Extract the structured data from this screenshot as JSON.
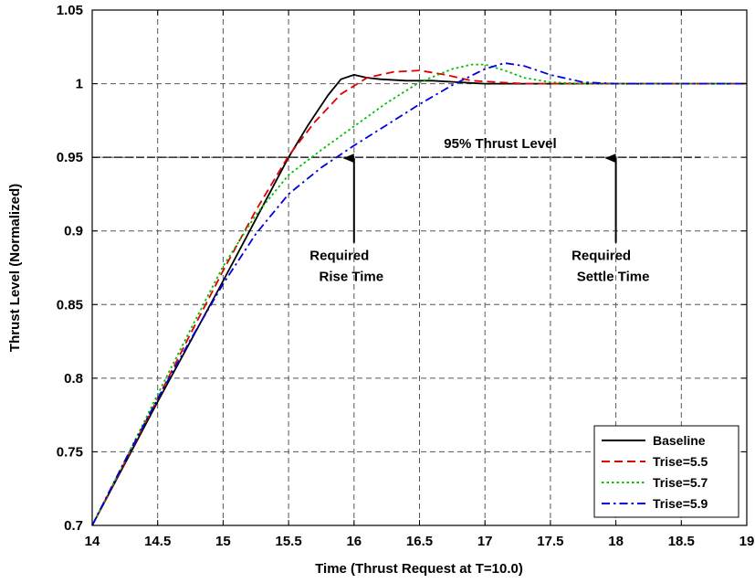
{
  "chart_data": {
    "type": "line",
    "xlabel": "Time (Thrust Request at T=10.0)",
    "ylabel": "Thrust Level (Normalized)",
    "xlim": [
      14,
      19
    ],
    "ylim": [
      0.7,
      1.05
    ],
    "grid": true,
    "legend_position": "bottom-right",
    "x_ticks": [
      14,
      14.5,
      15,
      15.5,
      16,
      16.5,
      17,
      17.5,
      18,
      18.5,
      19
    ],
    "x_tick_labels": [
      "14",
      "14.5",
      "15",
      "15.5",
      "16",
      "16.5",
      "17",
      "17.5",
      "18",
      "18.5",
      "19"
    ],
    "y_ticks": [
      0.7,
      0.75,
      0.8,
      0.85,
      0.9,
      0.95,
      1,
      1.05
    ],
    "y_tick_labels": [
      "0.7",
      "0.75",
      "0.8",
      "0.85",
      "0.9",
      "0.95",
      "1",
      "1.05"
    ],
    "series": [
      {
        "name": "Baseline",
        "color": "#000000",
        "style": "solid",
        "x": [
          14.0,
          14.25,
          14.5,
          14.75,
          15.0,
          15.25,
          15.5,
          15.65,
          15.8,
          15.9,
          16.0,
          16.1,
          16.2,
          16.4,
          16.6,
          16.8,
          17.0,
          17.5,
          18.0,
          18.5,
          19.0
        ],
        "y": [
          0.7,
          0.742,
          0.784,
          0.825,
          0.866,
          0.908,
          0.95,
          0.972,
          0.992,
          1.003,
          1.006,
          1.004,
          1.003,
          1.002,
          1.002,
          1.001,
          1.0,
          1.0,
          1.0,
          1.0,
          1.0
        ]
      },
      {
        "name": "Trise=5.5",
        "color": "#e00000",
        "style": "dashed",
        "x": [
          14.0,
          14.25,
          14.5,
          14.75,
          15.0,
          15.25,
          15.5,
          15.7,
          15.9,
          16.1,
          16.3,
          16.5,
          16.7,
          16.9,
          17.1,
          17.3,
          17.6,
          18.0,
          18.5,
          19.0
        ],
        "y": [
          0.7,
          0.743,
          0.786,
          0.83,
          0.873,
          0.914,
          0.951,
          0.974,
          0.993,
          1.004,
          1.008,
          1.009,
          1.006,
          1.002,
          1.001,
          1.0,
          1.0,
          1.0,
          1.0,
          1.0
        ]
      },
      {
        "name": "Trise=5.7",
        "color": "#00c000",
        "style": "dotted",
        "x": [
          14.0,
          14.25,
          14.5,
          14.75,
          15.0,
          15.25,
          15.5,
          15.75,
          16.0,
          16.25,
          16.5,
          16.75,
          16.9,
          17.0,
          17.15,
          17.3,
          17.5,
          17.75,
          18.0,
          18.5,
          19.0
        ],
        "y": [
          0.7,
          0.744,
          0.789,
          0.833,
          0.876,
          0.911,
          0.938,
          0.955,
          0.971,
          0.987,
          1.001,
          1.01,
          1.013,
          1.013,
          1.009,
          1.004,
          1.001,
          1.0,
          1.0,
          1.0,
          1.0
        ]
      },
      {
        "name": "Trise=5.9",
        "color": "#0000e0",
        "style": "dashdot",
        "x": [
          14.0,
          14.25,
          14.5,
          14.75,
          15.0,
          15.25,
          15.5,
          15.75,
          16.0,
          16.25,
          16.5,
          16.75,
          17.0,
          17.15,
          17.3,
          17.5,
          17.75,
          18.0,
          18.5,
          19.0
        ],
        "y": [
          0.7,
          0.744,
          0.786,
          0.826,
          0.864,
          0.898,
          0.925,
          0.943,
          0.958,
          0.972,
          0.986,
          0.999,
          1.01,
          1.014,
          1.012,
          1.006,
          1.001,
          1.0,
          1.0,
          1.0
        ]
      }
    ],
    "reference_line": {
      "y": 0.95,
      "x_start": 14,
      "x_end": 18.65,
      "label": "95% Thrust Level"
    },
    "annotations": [
      {
        "line1": "Required",
        "line2": "Rise Time",
        "x": 16,
        "arrow_from_y": 0.892,
        "arrow_to_y": 0.95
      },
      {
        "line1": "Required",
        "line2": "Settle Time",
        "x": 18,
        "arrow_from_y": 0.892,
        "arrow_to_y": 0.95
      }
    ]
  }
}
